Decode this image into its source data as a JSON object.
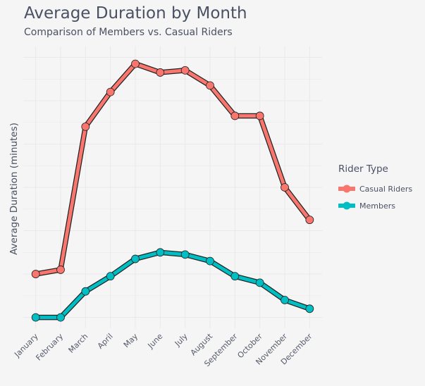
{
  "chart_data": {
    "type": "line",
    "title": "Average Duration by Month",
    "subtitle": "Comparison of Members vs. Casual Riders",
    "xlabel": "",
    "ylabel": "Average Duration (minutes)",
    "categories": [
      "January",
      "February",
      "March",
      "April",
      "May",
      "June",
      "July",
      "August",
      "September",
      "October",
      "November",
      "December"
    ],
    "series": [
      {
        "name": "Casual Riders",
        "color": "#f8766d",
        "values": [
          17.0,
          17.2,
          23.8,
          25.4,
          26.7,
          26.3,
          26.4,
          25.7,
          24.3,
          24.3,
          21.0,
          19.5
        ]
      },
      {
        "name": "Members",
        "color": "#00bfc4",
        "values": [
          15.0,
          15.0,
          16.2,
          16.9,
          17.7,
          18.0,
          17.9,
          17.6,
          16.9,
          16.6,
          15.8,
          15.4
        ]
      }
    ],
    "ylim": [
      14.5,
      27.5
    ],
    "y_ticks_shown": false,
    "grid": true,
    "legend": {
      "title": "Rider Type",
      "position": "right"
    }
  }
}
